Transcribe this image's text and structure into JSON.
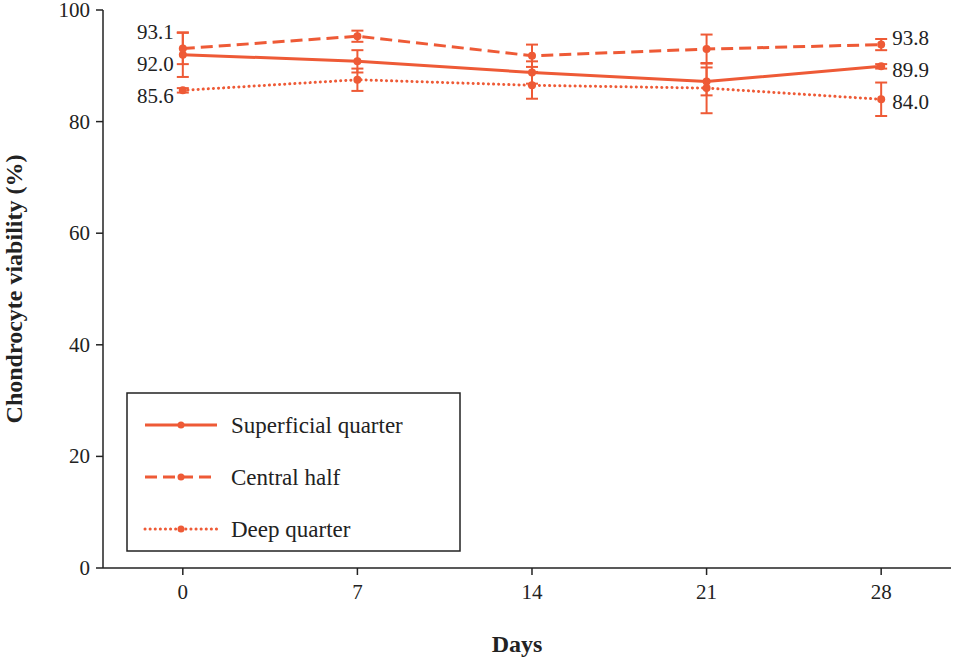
{
  "chart_data": {
    "type": "line",
    "x_label": "Days",
    "y_label": "Chondrocyte viability (%)",
    "x": [
      0,
      7,
      14,
      21,
      28
    ],
    "xlim": [
      -3.2,
      30.8
    ],
    "xticks": [
      0,
      7,
      14,
      21,
      28
    ],
    "ylim": [
      0,
      100
    ],
    "yticks": [
      0,
      20,
      40,
      60,
      80,
      100
    ],
    "grid": false,
    "legend": "lower left",
    "series": [
      {
        "name": "Superficial quarter",
        "color": "#ee5a36",
        "line_style": "solid",
        "marker": "circle",
        "values": [
          92.0,
          90.8,
          88.8,
          87.2,
          89.9
        ],
        "errors": [
          4.0,
          2.0,
          2.0,
          2.5,
          0.4
        ]
      },
      {
        "name": "Central half",
        "color": "#ee5a36",
        "line_style": "dashed",
        "marker": "circle",
        "values": [
          93.1,
          95.3,
          91.8,
          93.0,
          93.8
        ],
        "errors": [
          2.8,
          1.0,
          2.0,
          2.6,
          1.0
        ]
      },
      {
        "name": "Deep quarter",
        "color": "#ee5a36",
        "line_style": "dotted",
        "marker": "circle",
        "values": [
          85.6,
          87.5,
          86.5,
          86.0,
          84.0
        ],
        "errors": [
          0.4,
          2.0,
          2.4,
          4.5,
          3.0
        ]
      }
    ],
    "annotations": [
      {
        "text": "93.1",
        "series": 1,
        "x": 0
      },
      {
        "text": "92.0",
        "series": 0,
        "x": 0
      },
      {
        "text": "85.6",
        "series": 2,
        "x": 0
      },
      {
        "text": "93.8",
        "series": 1,
        "x": 28
      },
      {
        "text": "89.9",
        "series": 0,
        "x": 28
      },
      {
        "text": "84.0",
        "series": 2,
        "x": 28
      }
    ]
  }
}
